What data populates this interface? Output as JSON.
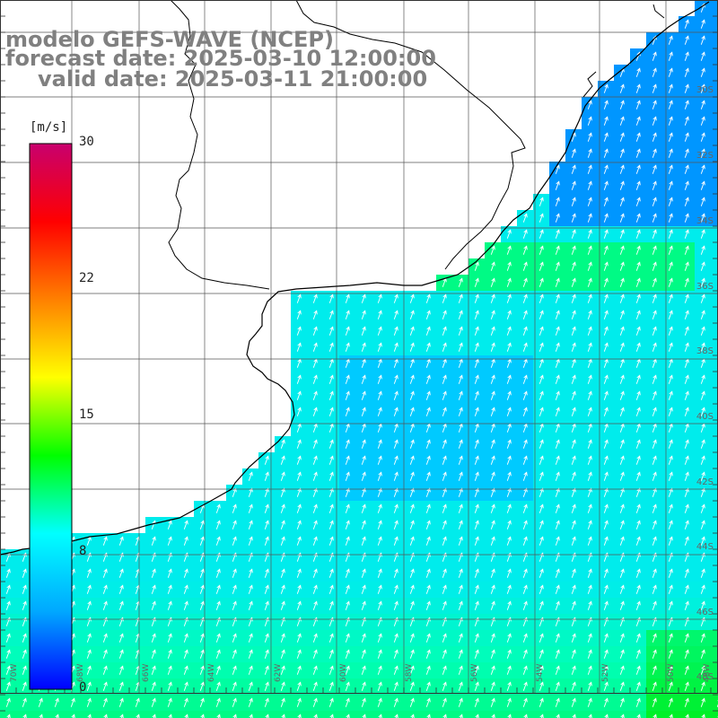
{
  "map": {
    "title_line1": "modelo GEFS-WAVE (NCEP)",
    "title_line2": "forecast date: 2025-03-10 12:00:00",
    "title_line3": "valid date: 2025-03-11 21:00:00",
    "colorbar": {
      "unit": "[m/s]",
      "ticks": [
        "30",
        "22",
        "15",
        "8",
        "0"
      ],
      "min": 0,
      "max": 30,
      "colors": [
        "#0000ff",
        "#00a8ff",
        "#00ffff",
        "#00ff00",
        "#ffff00",
        "#ff8000",
        "#ff0000",
        "#c8006e"
      ]
    },
    "lat_labels": [
      "30S",
      "32S",
      "34S",
      "36S",
      "38S",
      "40S",
      "42S",
      "44S",
      "46S",
      "48S"
    ],
    "lon_labels": [
      "70W",
      "68W",
      "66W",
      "64W",
      "62W",
      "60W",
      "58W",
      "56W",
      "54W",
      "52W",
      "50W",
      "48W"
    ],
    "colors": {
      "land": "#ffffff",
      "coastline": "#000000",
      "grid": "#555555",
      "arrows": "#ffffff",
      "title": "#808080"
    }
  }
}
